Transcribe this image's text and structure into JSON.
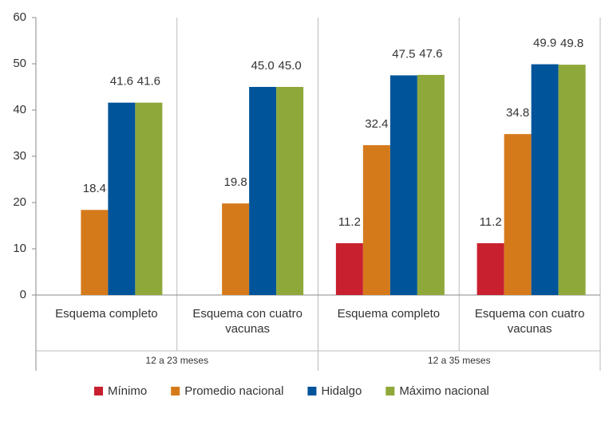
{
  "chart_data": {
    "type": "bar",
    "categories": [
      "Esquema completo",
      "Esquema con cuatro vacunas",
      "Esquema completo",
      "Esquema con cuatro vacunas"
    ],
    "group_labels": [
      "12 a 23 meses",
      "12 a 35 meses"
    ],
    "series": [
      {
        "name": "Mínimo",
        "color": "#c8202f",
        "values": [
          null,
          null,
          11.2,
          11.2
        ],
        "value_labels": [
          null,
          null,
          "11.2",
          "11.2"
        ]
      },
      {
        "name": "Promedio nacional",
        "color": "#d57a1b",
        "values": [
          18.4,
          19.8,
          32.4,
          34.8
        ],
        "value_labels": [
          "18.4",
          "19.8",
          "32.4",
          "34.8"
        ]
      },
      {
        "name": "Hidalgo",
        "color": "#00549a",
        "values": [
          41.6,
          45.0,
          47.5,
          49.9
        ],
        "value_labels": [
          "41.6",
          "45.0",
          "47.5",
          "49.9"
        ]
      },
      {
        "name": "Máximo nacional",
        "color": "#8fa83a",
        "values": [
          41.6,
          45.0,
          47.6,
          49.8
        ],
        "value_labels": [
          "41.6",
          "45.0",
          "47.6",
          "49.8"
        ]
      }
    ],
    "ylim": [
      0,
      60
    ],
    "yticks": [
      0,
      10,
      20,
      30,
      40,
      50,
      60
    ],
    "legend": "bottom"
  }
}
